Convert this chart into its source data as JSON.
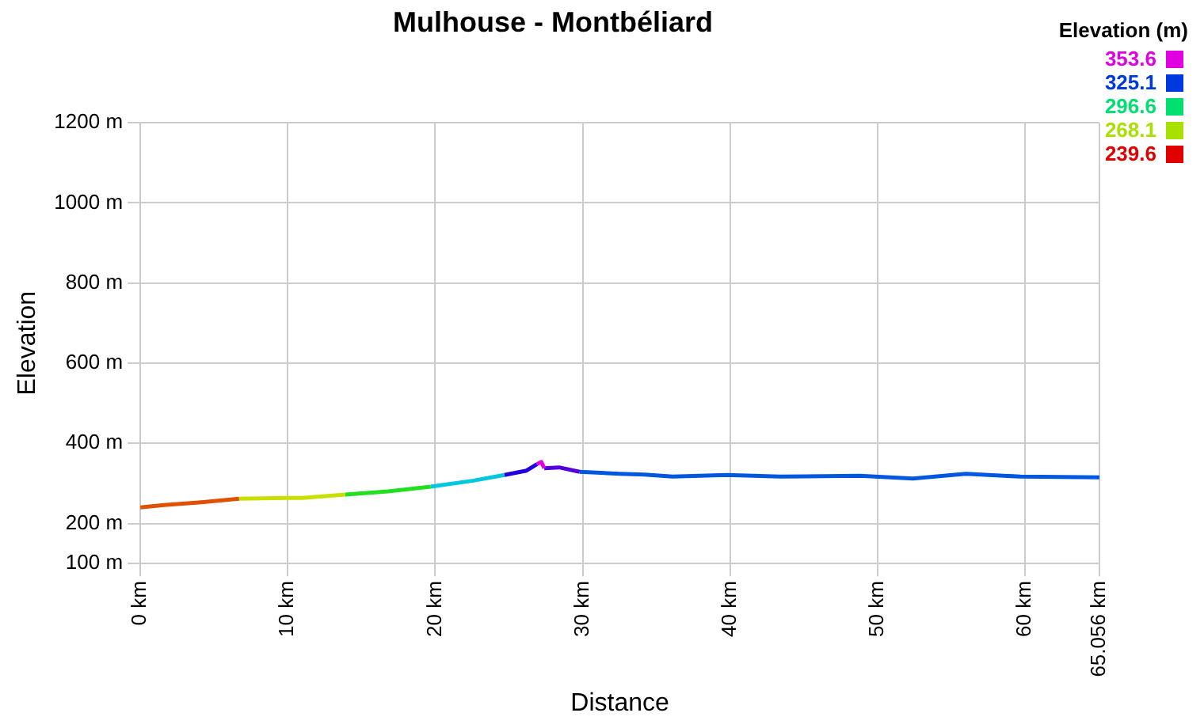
{
  "chart_data": {
    "type": "line",
    "title": "Mulhouse - Montbéliard",
    "xlabel": "Distance",
    "ylabel": "Elevation",
    "clabel": "Elevation (m)",
    "series": [
      {
        "color": "#e05000",
        "x": [
          0,
          1.6,
          3.8,
          6.7
        ],
        "values": [
          240,
          246,
          252,
          262
        ]
      },
      {
        "color": "#c8e000",
        "x": [
          6.7,
          9.9,
          11,
          13.9
        ],
        "values": [
          262,
          264,
          264,
          272
        ]
      },
      {
        "color": "#20e020",
        "x": [
          13.9,
          16.8,
          19.7
        ],
        "values": [
          272,
          280,
          292
        ]
      },
      {
        "color": "#00c8e0",
        "x": [
          19.7,
          22.6,
          24.7
        ],
        "values": [
          292,
          307,
          321
        ]
      },
      {
        "color": "#2000e0",
        "x": [
          24.7,
          26.2,
          26.9
        ],
        "values": [
          321,
          332,
          348
        ]
      },
      {
        "color": "#e000e0",
        "x": [
          26.9,
          27.2,
          27.4
        ],
        "values": [
          348,
          353.6,
          338
        ]
      },
      {
        "color": "#5000e0",
        "x": [
          27.4,
          28.4,
          29.8
        ],
        "values": [
          338,
          340,
          329
        ]
      },
      {
        "color": "#0058e0",
        "x": [
          29.8,
          32.5,
          34.2,
          36.1,
          39.8,
          43.4,
          48.8,
          52.4,
          56.0,
          59.7,
          65.056
        ],
        "values": [
          329,
          324,
          322,
          317,
          321,
          317,
          319,
          312,
          324,
          317,
          315
        ]
      }
    ],
    "clim": [
      239.6,
      353.6
    ],
    "cticks": [
      239.6,
      268.1,
      296.6,
      325.1,
      353.6
    ],
    "xlim": [
      0,
      65.056
    ],
    "xticks": [
      {
        "value": 0,
        "label": "0 km"
      },
      {
        "value": 10,
        "label": "10 km"
      },
      {
        "value": 20,
        "label": "20 km"
      },
      {
        "value": 30,
        "label": "30 km"
      },
      {
        "value": 40,
        "label": "40 km"
      },
      {
        "value": 50,
        "label": "50 km"
      },
      {
        "value": 60,
        "label": "60 km"
      },
      {
        "value": 65.056,
        "label": "65.056 km"
      }
    ],
    "ylim": [
      100,
      1200
    ],
    "yticks": [
      {
        "value": 100,
        "label": "100 m"
      },
      {
        "value": 200,
        "label": "200 m"
      },
      {
        "value": 400,
        "label": "400 m"
      },
      {
        "value": 600,
        "label": "600 m"
      },
      {
        "value": 800,
        "label": "800 m"
      },
      {
        "value": 1000,
        "label": "1000 m"
      },
      {
        "value": 1200,
        "label": "1200 m"
      }
    ],
    "grid": true,
    "marker": "none",
    "line_style": "solid"
  }
}
